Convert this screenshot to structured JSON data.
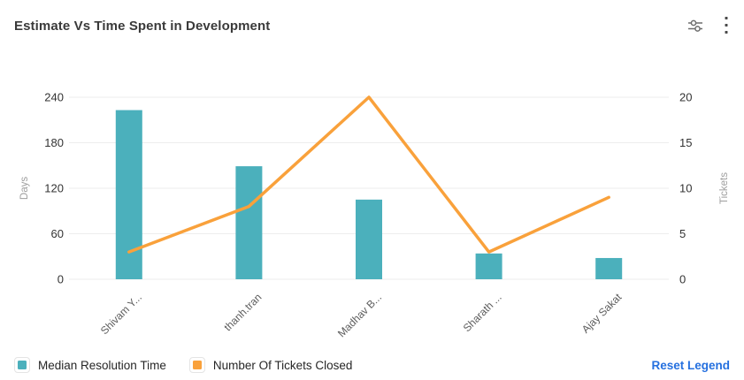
{
  "header": {
    "title": "Estimate Vs Time Spent in Development",
    "controls": [
      {
        "icon": "sliders-icon",
        "purpose": "chart settings"
      },
      {
        "icon": "kebab-menu-icon",
        "purpose": "more options"
      }
    ]
  },
  "chart_data": {
    "type": "combo",
    "title": "Estimate Vs Time Spent in Development",
    "categories": [
      "Shivam Y...",
      "thanh.tran",
      "Madhav B...",
      "Sharath ...",
      "Ajay Sakat"
    ],
    "series": [
      {
        "name": "Median Resolution Time",
        "type": "bar",
        "axis": "left",
        "color": "#4BB0BC",
        "values": [
          223,
          149,
          105,
          34,
          28
        ]
      },
      {
        "name": "Number Of Tickets Closed",
        "type": "line",
        "axis": "right",
        "color": "#F9A13B",
        "values": [
          3,
          8,
          20,
          3,
          9
        ]
      }
    ],
    "left_axis": {
      "label": "Days",
      "ticks": [
        0,
        60,
        120,
        180,
        240
      ],
      "min": 0,
      "max": 240
    },
    "right_axis": {
      "label": "Tickets",
      "ticks": [
        0,
        5,
        10,
        15,
        20
      ],
      "min": 0,
      "max": 20
    },
    "grid": true,
    "legend_position": "bottom"
  },
  "legend": {
    "items": [
      {
        "label": "Median Resolution Time",
        "color": "#4BB0BC"
      },
      {
        "label": "Number Of Tickets Closed",
        "color": "#F9A13B"
      }
    ],
    "reset_label": "Reset Legend"
  },
  "colors": {
    "bar": "#4BB0BC",
    "line": "#F9A13B",
    "link": "#2570DF",
    "grid": "#EDEDED",
    "tick_text": "#333333",
    "category_text": "#5C5C5C",
    "axis_name_text": "#9E9E9E",
    "icon": "#6E6E6E"
  }
}
